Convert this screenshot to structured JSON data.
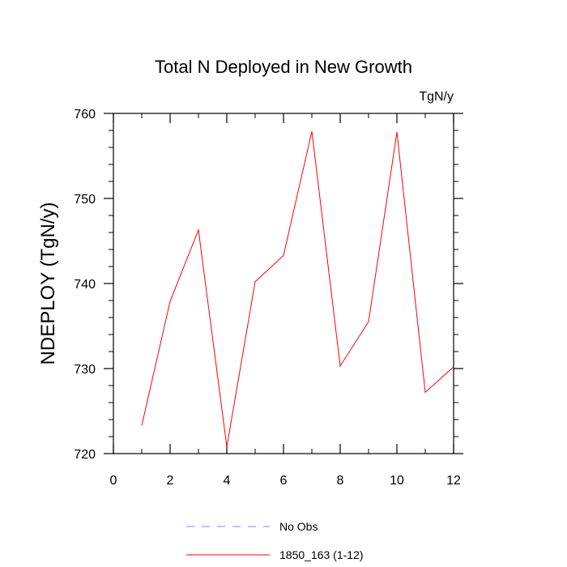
{
  "chart_data": {
    "type": "line",
    "title": "Total N Deployed in New Growth",
    "units": "TgN/y",
    "ylabel": "NDEPLOY  (TgN/y)",
    "xlabel": "",
    "xlim": [
      0,
      12
    ],
    "ylim": [
      720,
      760
    ],
    "x_ticks": [
      0,
      2,
      4,
      6,
      8,
      10,
      12
    ],
    "x_tick_labels": [
      "0",
      "2",
      "4",
      "6",
      "8",
      "10",
      "12"
    ],
    "y_ticks": [
      720,
      730,
      740,
      750,
      760
    ],
    "y_tick_labels": [
      "720",
      "730",
      "740",
      "750",
      "760"
    ],
    "grid": false,
    "legend_position": "bottom",
    "series": [
      {
        "name": "No Obs",
        "color": "#8080ff",
        "style": "dashed",
        "x": [],
        "y": []
      },
      {
        "name": "1850_163 (1-12)",
        "color": "#ff0000",
        "style": "solid",
        "x": [
          1,
          2,
          3,
          4,
          5,
          6,
          7,
          8,
          9,
          10,
          11,
          12
        ],
        "y": [
          723.3,
          737.9,
          746.3,
          720.8,
          740.2,
          743.3,
          757.9,
          730.3,
          735.5,
          757.8,
          727.2,
          730.2
        ]
      }
    ]
  }
}
